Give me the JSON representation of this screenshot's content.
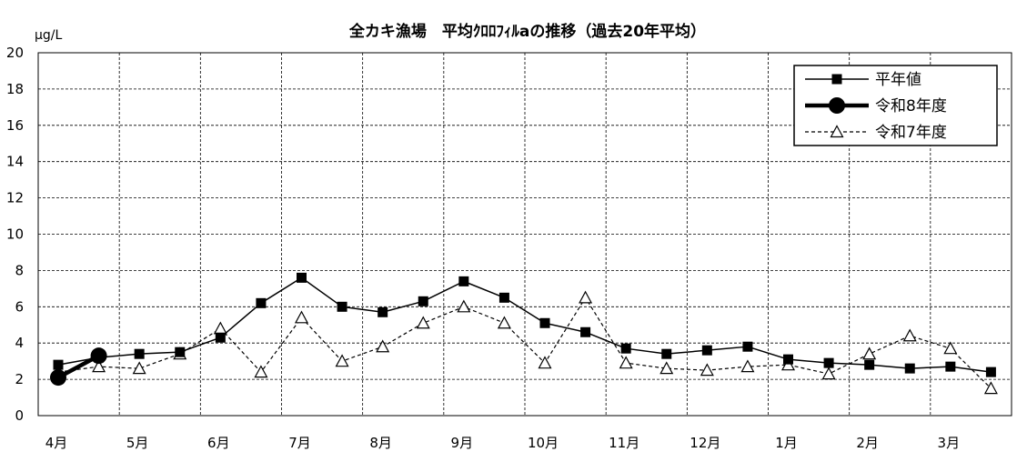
{
  "chart_data": {
    "type": "line",
    "title": "全カキ漁場　平均ｸﾛﾛﾌｨﾙaの推移（過去20年平均）",
    "ylabel": "μg/L",
    "xlabel": "",
    "ylim": [
      0,
      20
    ],
    "y_ticks": [
      "0",
      "2",
      "4",
      "6",
      "8",
      "10",
      "12",
      "14",
      "16",
      "18",
      "20"
    ],
    "month_labels": [
      "4月",
      "5月",
      "6月",
      "7月",
      "8月",
      "9月",
      "10月",
      "11月",
      "12月",
      "1月",
      "2月",
      "3月"
    ],
    "grid": true,
    "legend_position": "top-right",
    "series": [
      {
        "name": "平年値",
        "color": "#000000",
        "style": "solid-square",
        "values": [
          2.8,
          3.2,
          3.4,
          3.5,
          4.3,
          6.2,
          7.6,
          6.0,
          5.7,
          6.3,
          7.4,
          6.5,
          5.1,
          4.6,
          3.7,
          3.4,
          3.6,
          3.8,
          3.1,
          2.9,
          2.8,
          2.6,
          2.7,
          2.4
        ]
      },
      {
        "name": "令和8年度",
        "color": "#000000",
        "style": "bold-circle",
        "values": [
          2.1,
          3.3,
          null,
          null,
          null,
          null,
          null,
          null,
          null,
          null,
          null,
          null,
          null,
          null,
          null,
          null,
          null,
          null,
          null,
          null,
          null,
          null,
          null,
          null
        ]
      },
      {
        "name": "令和7年度",
        "color": "#000000",
        "style": "dashed-triangle",
        "values": [
          2.4,
          2.7,
          2.6,
          3.4,
          4.8,
          2.4,
          5.4,
          3.0,
          3.8,
          5.1,
          6.0,
          5.1,
          2.9,
          6.5,
          2.9,
          2.6,
          2.5,
          2.7,
          2.8,
          2.3,
          3.4,
          4.4,
          3.7,
          1.5
        ]
      }
    ]
  }
}
